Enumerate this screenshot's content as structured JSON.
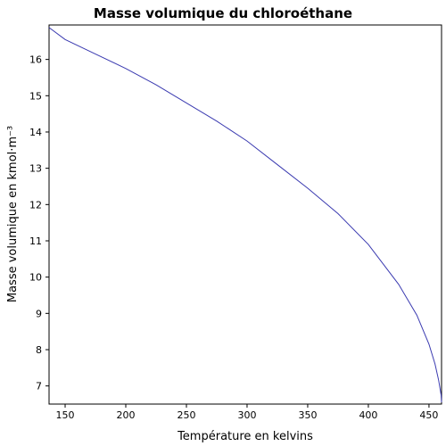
{
  "chart_data": {
    "type": "line",
    "title": "Masse volumique du chloroéthane",
    "xlabel": "Température en kelvins",
    "ylabel": "Masse volumique en kmol·m⁻³",
    "xlim": [
      136.75,
      460.35
    ],
    "ylim": [
      6.5,
      16.95
    ],
    "xticks": [
      150,
      200,
      250,
      300,
      350,
      400,
      450
    ],
    "yticks": [
      7,
      8,
      9,
      10,
      11,
      12,
      13,
      14,
      15,
      16
    ],
    "grid": false,
    "series": [
      {
        "color": "#3a3ab0",
        "x": [
          136.75,
          150,
          175,
          200,
          225,
          250,
          275,
          300,
          325,
          350,
          375,
          400,
          425,
          440,
          450,
          455,
          458,
          460,
          460.35
        ],
        "y": [
          16.88,
          16.55,
          16.15,
          15.75,
          15.3,
          14.8,
          14.3,
          13.75,
          13.1,
          12.45,
          11.75,
          10.9,
          9.8,
          8.95,
          8.15,
          7.6,
          7.15,
          6.75,
          6.55
        ]
      }
    ]
  }
}
